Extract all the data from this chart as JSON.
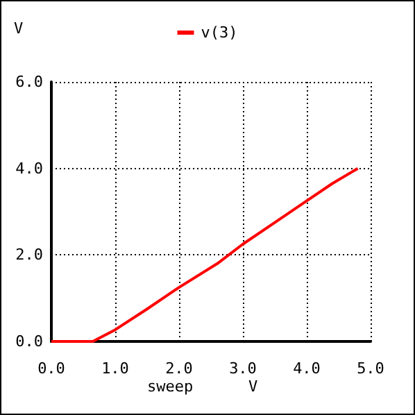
{
  "chart_data": {
    "type": "line",
    "xlabel": "sweep",
    "ylabel": "V",
    "annotations": [
      "V"
    ],
    "series": [
      {
        "name": "v(3)",
        "color": "#ff0000",
        "x": [
          0,
          0.65,
          1.0,
          1.5,
          2.0,
          2.6,
          3.0,
          3.5,
          4.0,
          4.4,
          4.8
        ],
        "values": [
          0,
          0,
          0.27,
          0.75,
          1.25,
          1.8,
          2.25,
          2.75,
          3.25,
          3.65,
          4.0
        ]
      }
    ],
    "xlim": [
      0,
      5
    ],
    "ylim": [
      0,
      6
    ],
    "xticks": [
      {
        "value": 0,
        "label": "0.0"
      },
      {
        "value": 1,
        "label": "1.0"
      },
      {
        "value": 2,
        "label": "2.0"
      },
      {
        "value": 3,
        "label": "3.0"
      },
      {
        "value": 4,
        "label": "4.0"
      },
      {
        "value": 5,
        "label": "5.0"
      }
    ],
    "yticks": [
      {
        "value": 0,
        "label": "0.0"
      },
      {
        "value": 2,
        "label": "2.0"
      },
      {
        "value": 4,
        "label": "4.0"
      },
      {
        "value": 6,
        "label": "6.0"
      }
    ],
    "grid": true,
    "legend": "top",
    "marker": "none",
    "line_style": "solid"
  }
}
